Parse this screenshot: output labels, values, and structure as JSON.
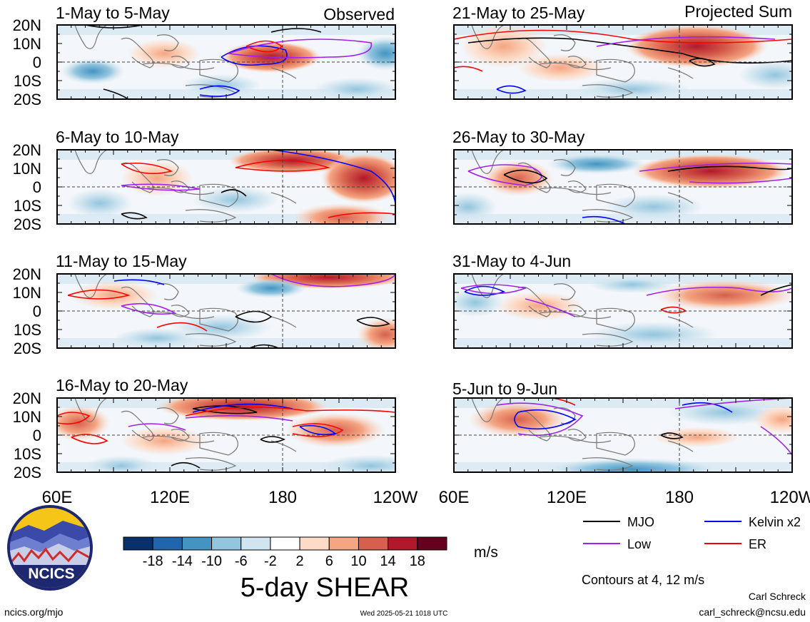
{
  "chart_data": {
    "type": "heatmap",
    "title": "5-day SHEAR",
    "units": "m/s",
    "contour_note": "Contours at 4, 12 m/s",
    "columns": [
      {
        "label": "Observed",
        "panels": [
          "1-May to 5-May",
          "6-May to 10-May",
          "11-May to 15-May",
          "16-May to 20-May"
        ]
      },
      {
        "label": "Projected Sum",
        "panels": [
          "21-May to 25-May",
          "26-May to 30-May",
          "31-May to 4-Jun",
          "5-Jun to 9-Jun"
        ]
      }
    ],
    "lat_ticks": [
      "20N",
      "10N",
      "0",
      "10S",
      "20S"
    ],
    "lon_ticks": [
      "60E",
      "120E",
      "180",
      "120W"
    ],
    "colorbar": {
      "ticks": [
        "-18",
        "-14",
        "-10",
        "-6",
        "-2",
        "2",
        "6",
        "10",
        "14",
        "18"
      ],
      "colors": [
        "#08306b",
        "#2166ac",
        "#4393c3",
        "#92c5de",
        "#d1e5f0",
        "#ffffff",
        "#fddbc7",
        "#f4a582",
        "#d6604d",
        "#b2182b",
        "#67001f"
      ]
    },
    "legend": [
      {
        "label": "MJO",
        "color": "#000000"
      },
      {
        "label": "Kelvin x2",
        "color": "#0000ff"
      },
      {
        "label": "Low",
        "color": "#a020f0"
      },
      {
        "label": "ER",
        "color": "#ff0000"
      }
    ]
  },
  "logo": {
    "text": "NCICS"
  },
  "footer": {
    "url": "ncics.org/mjo",
    "timestamp": "Wed 2025-05-21 1018 UTC",
    "author": "Carl Schreck",
    "email": "carl_schreck@ncsu.edu"
  }
}
